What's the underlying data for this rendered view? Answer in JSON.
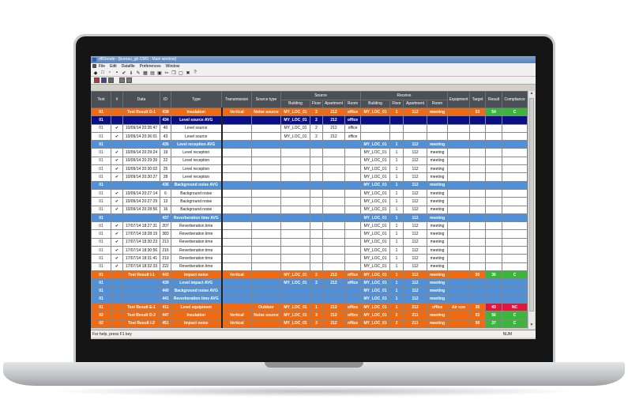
{
  "window": {
    "title": "dBSnode - [bureau_gb.CMG : Main window]"
  },
  "menu": [
    "File",
    "Edit",
    "Datafile",
    "Preferences",
    "Window"
  ],
  "toolbar_icons": [
    "app-icon",
    "new-icon",
    "open-icon",
    "save-icon",
    "check-icon",
    "info-icon",
    "edit-icon",
    "grid-icon",
    "chart-icon",
    "print-icon",
    "cut-icon",
    "copy-icon",
    "paste-icon",
    "delete-icon",
    "help-icon"
  ],
  "toolbar2_icons": [
    "view-a-icon",
    "view-b-icon",
    "view-c-icon",
    "filter-icon",
    "sort-icon"
  ],
  "table": {
    "group_headers": {
      "source": "Source",
      "receive": "Receive"
    },
    "headers": [
      "Test",
      "#",
      "Data",
      "ID",
      "Type",
      "Transmission",
      "Source type",
      "Building",
      "Floor",
      "Apartment",
      "Room",
      "Building",
      "Floor",
      "Apartment",
      "Room",
      "Equipment",
      "Target",
      "Result",
      "Compliance"
    ],
    "rows": [
      {
        "style": "orange",
        "cells": [
          "01",
          "",
          "Test Result D-1",
          "438",
          "Insulation",
          "Vertical",
          "Noise source",
          "MY_LOC_01",
          "2",
          "212",
          "office",
          "MY_LOC_01",
          "1",
          "112",
          "meeting",
          "",
          "53",
          "54",
          "C"
        ],
        "status": "good"
      },
      {
        "style": "navy",
        "cells": [
          "01",
          "",
          "",
          "434",
          "Level source AVG",
          "",
          "",
          "MY_LOC_01",
          "2",
          "212",
          "office",
          "",
          "",
          "",
          "",
          "",
          "",
          "",
          ""
        ]
      },
      {
        "style": "white",
        "cells": [
          "01",
          "✔",
          "10/09/14 20:35:47",
          "40",
          "Level source",
          "",
          "",
          "MY_LOC_01",
          "2",
          "212",
          "office",
          "",
          "",
          "",
          "",
          "",
          "",
          "",
          ""
        ]
      },
      {
        "style": "white",
        "cells": [
          "01",
          "✔",
          "10/09/14 20:36:01",
          "43",
          "Level source",
          "",
          "",
          "MY_LOC_01",
          "2",
          "212",
          "office",
          "",
          "",
          "",
          "",
          "",
          "",
          "",
          ""
        ]
      },
      {
        "style": "lb",
        "cells": [
          "01",
          "",
          "",
          "435",
          "Level reception AVG",
          "",
          "",
          "",
          "",
          "",
          "",
          "MY_LOC_01",
          "1",
          "112",
          "meeting",
          "",
          "",
          "",
          ""
        ]
      },
      {
        "style": "white",
        "cells": [
          "01",
          "✔",
          "10/09/14 20:29:24",
          "19",
          "Level reception",
          "",
          "",
          "",
          "",
          "",
          "",
          "MY_LOC_01",
          "1",
          "112",
          "meeting",
          "",
          "",
          "",
          ""
        ]
      },
      {
        "style": "white",
        "cells": [
          "01",
          "✔",
          "10/09/14 20:29:39",
          "22",
          "Level reception",
          "",
          "",
          "",
          "",
          "",
          "",
          "MY_LOC_01",
          "1",
          "112",
          "meeting",
          "",
          "",
          "",
          ""
        ]
      },
      {
        "style": "white",
        "cells": [
          "01",
          "✔",
          "10/09/14 20:30:02",
          "25",
          "Level reception",
          "",
          "",
          "",
          "",
          "",
          "",
          "MY_LOC_01",
          "1",
          "112",
          "meeting",
          "",
          "",
          "",
          ""
        ]
      },
      {
        "style": "white",
        "cells": [
          "01",
          "✔",
          "10/09/14 20:30:27",
          "28",
          "Level reception",
          "",
          "",
          "",
          "",
          "",
          "",
          "MY_LOC_01",
          "1",
          "112",
          "meeting",
          "",
          "",
          "",
          ""
        ]
      },
      {
        "style": "lb",
        "cells": [
          "01",
          "",
          "",
          "436",
          "Background noise AVG",
          "",
          "",
          "",
          "",
          "",
          "",
          "MY_LOC_01",
          "1",
          "112",
          "meeting",
          "",
          "",
          "",
          ""
        ]
      },
      {
        "style": "white",
        "cells": [
          "01",
          "✔",
          "10/09/14 20:27:14",
          "6",
          "Background noise",
          "",
          "",
          "",
          "",
          "",
          "",
          "MY_LOC_01",
          "1",
          "112",
          "meeting",
          "",
          "",
          "",
          ""
        ]
      },
      {
        "style": "white",
        "cells": [
          "01",
          "✔",
          "10/09/14 20:27:29",
          "13",
          "Background noise",
          "",
          "",
          "",
          "",
          "",
          "",
          "MY_LOC_01",
          "1",
          "112",
          "meeting",
          "",
          "",
          "",
          ""
        ]
      },
      {
        "style": "white",
        "cells": [
          "01",
          "✔",
          "10/09/14 20:28:56",
          "16",
          "Background noise",
          "",
          "",
          "",
          "",
          "",
          "",
          "MY_LOC_01",
          "1",
          "112",
          "meeting",
          "",
          "",
          "",
          ""
        ]
      },
      {
        "style": "lb",
        "cells": [
          "01",
          "",
          "",
          "437",
          "Reverberation time AVG",
          "",
          "",
          "",
          "",
          "",
          "",
          "MY_LOC_01",
          "1",
          "112",
          "meeting",
          "",
          "",
          "",
          ""
        ]
      },
      {
        "style": "white",
        "cells": [
          "01",
          "✔",
          "17/07/14 18:27:31",
          "207",
          "Reverberation time",
          "",
          "",
          "",
          "",
          "",
          "",
          "MY_LOC_01",
          "1",
          "112",
          "meeting",
          "",
          "",
          "",
          ""
        ]
      },
      {
        "style": "white",
        "cells": [
          "01",
          "✔",
          "17/07/14 18:28:19",
          "383",
          "Reverberation time",
          "",
          "",
          "",
          "",
          "",
          "",
          "MY_LOC_01",
          "1",
          "112",
          "meeting",
          "",
          "",
          "",
          ""
        ]
      },
      {
        "style": "white",
        "cells": [
          "01",
          "✔",
          "17/07/14 18:30:23",
          "213",
          "Reverberation time",
          "",
          "",
          "",
          "",
          "",
          "",
          "MY_LOC_01",
          "1",
          "112",
          "meeting",
          "",
          "",
          "",
          ""
        ]
      },
      {
        "style": "white",
        "cells": [
          "01",
          "✔",
          "17/07/14 18:30:56",
          "216",
          "Reverberation time",
          "",
          "",
          "",
          "",
          "",
          "",
          "MY_LOC_01",
          "1",
          "112",
          "meeting",
          "",
          "",
          "",
          ""
        ]
      },
      {
        "style": "white",
        "cells": [
          "01",
          "✔",
          "17/07/14 18:31:41",
          "219",
          "Reverberation time",
          "",
          "",
          "",
          "",
          "",
          "",
          "MY_LOC_01",
          "1",
          "112",
          "meeting",
          "",
          "",
          "",
          ""
        ]
      },
      {
        "style": "white",
        "cells": [
          "01",
          "✔",
          "17/07/14 18:32:33",
          "222",
          "Reverberation time",
          "",
          "",
          "",
          "",
          "",
          "",
          "MY_LOC_01",
          "1",
          "112",
          "meeting",
          "",
          "",
          "",
          ""
        ]
      },
      {
        "style": "orange",
        "cells": [
          "01",
          "",
          "Test Result I-1",
          "442",
          "Impact noise",
          "Vertical",
          "",
          "MY_LOC_01",
          "2",
          "212",
          "office",
          "MY_LOC_01",
          "1",
          "112",
          "meeting",
          "",
          "50",
          "36",
          "C"
        ],
        "status": "good"
      },
      {
        "style": "lb",
        "cells": [
          "01",
          "",
          "",
          "439",
          "Level impact AVG",
          "",
          "",
          "MY_LOC_01",
          "2",
          "212",
          "office",
          "MY_LOC_01",
          "1",
          "112",
          "meeting",
          "",
          "",
          "",
          ""
        ]
      },
      {
        "style": "lb",
        "cells": [
          "01",
          "",
          "",
          "440",
          "Background noise AVG",
          "",
          "",
          "",
          "",
          "",
          "",
          "MY_LOC_01",
          "1",
          "112",
          "meeting",
          "",
          "",
          "",
          ""
        ]
      },
      {
        "style": "lb",
        "cells": [
          "01",
          "",
          "",
          "441",
          "Reverberation time AVG",
          "",
          "",
          "",
          "",
          "",
          "",
          "MY_LOC_01",
          "1",
          "112",
          "meeting",
          "",
          "",
          "",
          ""
        ]
      },
      {
        "style": "orange",
        "cells": [
          "01",
          "",
          "Test Result E-1",
          "411",
          "Level equipment",
          "",
          "Outdoor",
          "MY_LOC_01",
          "1",
          "212",
          "office",
          "MY_LOC_01",
          "1",
          "212",
          "office",
          "Air con",
          "35",
          "43",
          "NC"
        ],
        "status": "bad"
      },
      {
        "style": "orange",
        "cells": [
          "02",
          "",
          "Test Result D-2",
          "447",
          "Insulation",
          "Vertical",
          "Noise source",
          "MY_LOC_01",
          "3",
          "212",
          "office",
          "MY_LOC_01",
          "2",
          "211",
          "meeting",
          "",
          "53",
          "56",
          "C"
        ],
        "status": "good"
      },
      {
        "style": "orange",
        "cells": [
          "02",
          "",
          "Test Result I-2",
          "451",
          "Impact noise",
          "Vertical",
          "",
          "MY_LOC_01",
          "3",
          "212",
          "office",
          "MY_LOC_01",
          "2",
          "211",
          "meeting",
          "",
          "50",
          "37",
          "C"
        ],
        "status": "good"
      }
    ]
  },
  "status_bar": {
    "help": "For help, press F1 key",
    "num": "NUM"
  },
  "colors": {
    "orange": "#f06a12",
    "navy": "#0b0f85",
    "light_blue": "#4f90d8",
    "pass": "#3cb53c",
    "fail": "#e2163c",
    "header": "#4b5057"
  }
}
